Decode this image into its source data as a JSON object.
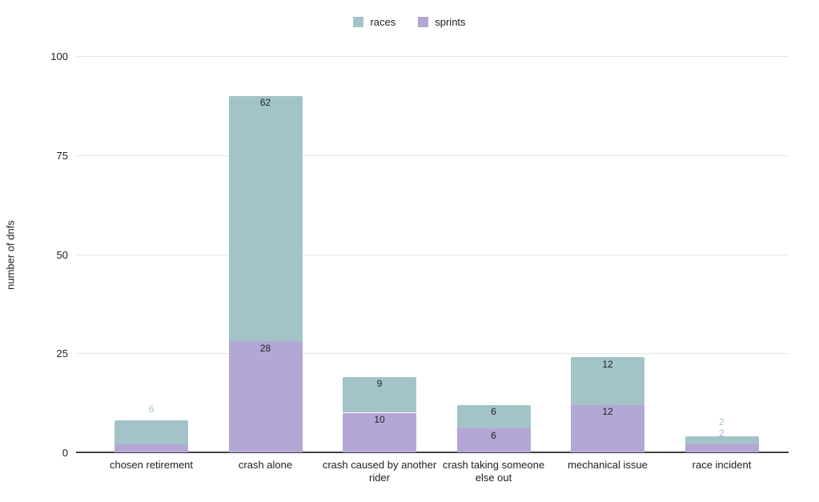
{
  "chart_data": {
    "type": "bar",
    "stacked": true,
    "title": "",
    "categories": [
      "chosen retirement",
      "crash alone",
      "crash caused by another rider",
      "crash taking someone else out",
      "mechanical issue",
      "race incident"
    ],
    "series": [
      {
        "name": "sprints",
        "color": "#b4a7d6",
        "values": [
          2,
          28,
          10,
          6,
          12,
          2
        ]
      },
      {
        "name": "races",
        "color": "#a2c4c9",
        "values": [
          6,
          62,
          9,
          6,
          12,
          2
        ]
      }
    ],
    "totals": [
      8,
      90,
      19,
      12,
      24,
      4
    ],
    "xlabel": "",
    "ylabel": "number of dnfs",
    "ylim": [
      0,
      100
    ],
    "yticks": [
      "0",
      "25",
      "50",
      "75",
      "100"
    ],
    "grid": true,
    "legend_position": "top",
    "legend_order": [
      "races",
      "sprints"
    ]
  },
  "colors": {
    "background": "#ffffff",
    "gridline": "#e6e6e6",
    "axis_line": "#424242",
    "text": "#202124",
    "races": "#a2c4c9",
    "sprints": "#b4a7d6"
  }
}
